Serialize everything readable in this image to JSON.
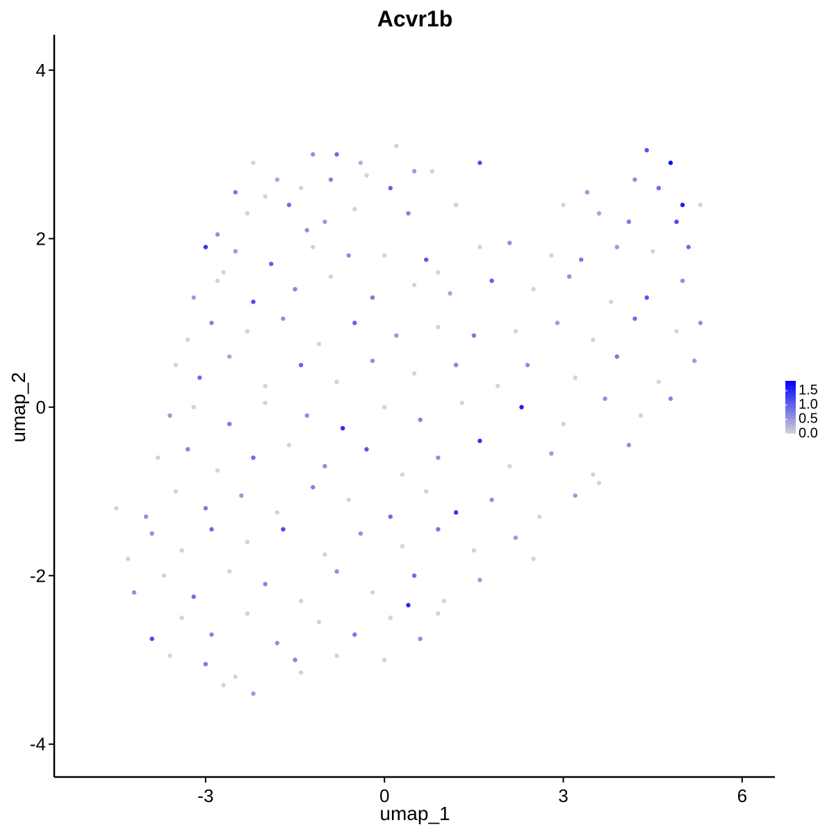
{
  "chart_data": {
    "type": "scatter",
    "title": "Acvr1b",
    "x_label": "umap_1",
    "y_label": "umap_2",
    "xlim": [
      -5.54,
      6.55
    ],
    "ylim": [
      -4.39,
      4.42
    ],
    "xticks": [
      -3,
      0,
      3,
      6
    ],
    "yticks": [
      -4,
      -2,
      0,
      2,
      4
    ],
    "colors": [
      "#d3d3d3",
      "#0000ff"
    ],
    "color_range": [
      0,
      1.85
    ],
    "color_ticks": [
      {
        "value": 0,
        "label": "0.0"
      },
      0.5,
      {
        "value": 1,
        "label": "1.0"
      },
      1.5
    ],
    "x": [
      -1.2,
      -0.8,
      -0.4,
      0.2,
      0.5,
      1.6,
      4.4,
      4.8,
      -2.2,
      -2.5,
      -1.8,
      -1.4,
      -0.9,
      -0.3,
      0.1,
      0.8,
      4.2,
      4.6,
      5.0,
      3.4,
      -2.0,
      -2.8,
      -2.3,
      -1.6,
      -1.0,
      -0.5,
      0.4,
      1.2,
      3.0,
      3.6,
      4.1,
      4.9,
      5.3,
      -1.3,
      -3.0,
      -2.5,
      -1.9,
      -1.2,
      -0.6,
      0.0,
      0.7,
      1.6,
      2.1,
      2.8,
      3.3,
      3.9,
      4.5,
      5.1,
      -2.7,
      -3.2,
      -2.8,
      -2.2,
      -1.5,
      -0.9,
      -0.2,
      0.5,
      1.1,
      1.8,
      2.5,
      3.1,
      3.8,
      4.4,
      5.0,
      0.9,
      -3.3,
      -2.9,
      -2.3,
      -1.7,
      -1.1,
      -0.5,
      0.2,
      0.9,
      1.5,
      2.2,
      2.9,
      3.5,
      4.2,
      4.9,
      5.3,
      -3.5,
      -3.1,
      -2.6,
      -2.0,
      -1.4,
      -0.8,
      -0.2,
      0.5,
      1.2,
      1.9,
      2.4,
      3.2,
      3.9,
      4.6,
      5.2,
      -3.6,
      -3.2,
      -2.6,
      -2.0,
      -1.3,
      -0.7,
      0.0,
      0.6,
      1.3,
      2.3,
      3.0,
      3.7,
      4.3,
      4.8,
      -3.8,
      -3.3,
      -2.8,
      -2.2,
      -1.6,
      -1.0,
      -0.3,
      0.3,
      0.9,
      1.6,
      2.1,
      2.8,
      3.5,
      4.1,
      -4.5,
      -4.0,
      -3.5,
      -3.0,
      -2.4,
      -1.8,
      -1.2,
      -0.6,
      0.1,
      0.7,
      1.2,
      1.8,
      2.6,
      3.2,
      3.6,
      -4.3,
      -3.9,
      -3.4,
      -2.9,
      -2.3,
      -1.7,
      -1.0,
      -0.4,
      0.3,
      0.9,
      1.5,
      2.2,
      2.5,
      -4.2,
      -3.7,
      -3.2,
      -2.6,
      -2.0,
      -1.4,
      -0.8,
      -0.2,
      0.5,
      1.0,
      1.6,
      -3.9,
      -3.4,
      -2.9,
      -2.3,
      -1.8,
      -1.1,
      -0.5,
      0.1,
      0.6,
      0.9,
      0.4,
      -3.6,
      -3.0,
      -2.5,
      -2.2,
      -2.7,
      -1.5,
      -0.8,
      0.0,
      -1.4
    ],
    "y": [
      3.0,
      3.0,
      2.9,
      3.1,
      2.8,
      2.9,
      3.05,
      2.9,
      2.9,
      2.55,
      2.7,
      2.6,
      2.7,
      2.75,
      2.6,
      2.8,
      2.7,
      2.6,
      2.4,
      2.55,
      2.5,
      2.05,
      2.3,
      2.4,
      2.2,
      2.35,
      2.3,
      2.4,
      2.4,
      2.3,
      2.2,
      2.2,
      2.4,
      2.1,
      1.9,
      1.85,
      1.7,
      1.9,
      1.8,
      1.8,
      1.75,
      1.9,
      1.95,
      1.8,
      1.75,
      1.9,
      1.85,
      1.9,
      1.6,
      1.3,
      1.5,
      1.25,
      1.4,
      1.55,
      1.3,
      1.45,
      1.35,
      1.5,
      1.4,
      1.55,
      1.25,
      1.3,
      1.5,
      1.6,
      0.8,
      1.0,
      0.9,
      1.05,
      0.75,
      1.0,
      0.85,
      0.95,
      0.85,
      0.9,
      1.0,
      0.8,
      1.05,
      0.9,
      1.0,
      0.5,
      0.35,
      0.6,
      0.25,
      0.5,
      0.3,
      0.55,
      0.4,
      0.5,
      0.25,
      0.5,
      0.35,
      0.6,
      0.3,
      0.55,
      -0.1,
      0.0,
      -0.2,
      0.05,
      -0.1,
      -0.25,
      0.0,
      -0.15,
      0.05,
      0.0,
      -0.2,
      0.1,
      -0.1,
      0.1,
      -0.6,
      -0.5,
      -0.75,
      -0.6,
      -0.45,
      -0.7,
      -0.5,
      -0.8,
      -0.6,
      -0.4,
      -0.7,
      -0.55,
      -0.8,
      -0.45,
      -1.2,
      -1.3,
      -1.0,
      -1.2,
      -1.05,
      -1.25,
      -0.95,
      -1.1,
      -1.3,
      -1.0,
      -1.25,
      -1.1,
      -1.3,
      -1.05,
      -0.9,
      -1.8,
      -1.5,
      -1.7,
      -1.45,
      -1.6,
      -1.45,
      -1.75,
      -1.5,
      -1.65,
      -1.45,
      -1.7,
      -1.55,
      -1.8,
      -2.2,
      -2.0,
      -2.25,
      -1.95,
      -2.1,
      -2.3,
      -1.95,
      -2.2,
      -2.0,
      -2.3,
      -2.05,
      -2.75,
      -2.5,
      -2.7,
      -2.45,
      -2.8,
      -2.55,
      -2.7,
      -2.5,
      -2.75,
      -2.45,
      -2.35,
      -2.95,
      -3.05,
      -3.2,
      -3.4,
      -3.3,
      -3.0,
      -2.95,
      -3.0,
      -3.15
    ],
    "values": [
      0.6,
      0.9,
      0.3,
      0,
      0.5,
      1.2,
      1.1,
      1.8,
      0,
      0.8,
      0.4,
      0,
      0.7,
      0,
      1.0,
      0,
      0.6,
      0.9,
      1.6,
      0.5,
      0,
      0.6,
      0,
      0.9,
      0.5,
      0,
      0.7,
      0,
      0,
      0.4,
      0.8,
      1.2,
      0,
      0.6,
      1.4,
      0.5,
      1.0,
      0,
      0.6,
      0,
      1.1,
      0,
      0.6,
      0,
      0.8,
      0.5,
      0,
      0.9,
      0,
      0.5,
      0,
      1.2,
      0.7,
      0,
      0.8,
      0,
      0.4,
      1.0,
      0,
      0.6,
      0,
      1.1,
      0.6,
      0,
      0,
      0.7,
      0,
      0.6,
      0,
      1.0,
      0.5,
      0,
      0.8,
      0,
      0.5,
      0,
      0.9,
      0,
      0.6,
      0,
      0.9,
      0.4,
      0,
      1.0,
      0,
      0.6,
      0,
      0.7,
      0,
      0.6,
      0,
      0.8,
      0,
      0.5,
      0.5,
      0,
      0.8,
      0,
      0.6,
      1.5,
      0,
      0.7,
      0,
      1.6,
      0,
      0.6,
      0,
      0.7,
      0,
      0.7,
      0,
      0.9,
      0,
      0.6,
      1.1,
      0,
      0.6,
      1.4,
      0,
      0.5,
      0,
      0.6,
      0,
      0.6,
      0,
      0.8,
      0.5,
      0,
      0.7,
      0,
      0.9,
      0,
      1.4,
      0.6,
      0,
      0.5,
      0,
      0,
      0.6,
      0,
      0.9,
      0,
      1.2,
      0,
      0.6,
      0,
      0.8,
      0,
      0.5,
      0,
      0.6,
      0,
      0.9,
      0,
      0.7,
      0,
      0.6,
      0,
      0.9,
      0,
      0.5,
      1.2,
      0,
      0.7,
      0,
      0.6,
      0,
      0.8,
      0,
      0.6,
      0,
      1.5,
      0,
      0.8,
      0,
      0.5,
      0,
      0.7,
      0,
      0,
      0
    ]
  }
}
